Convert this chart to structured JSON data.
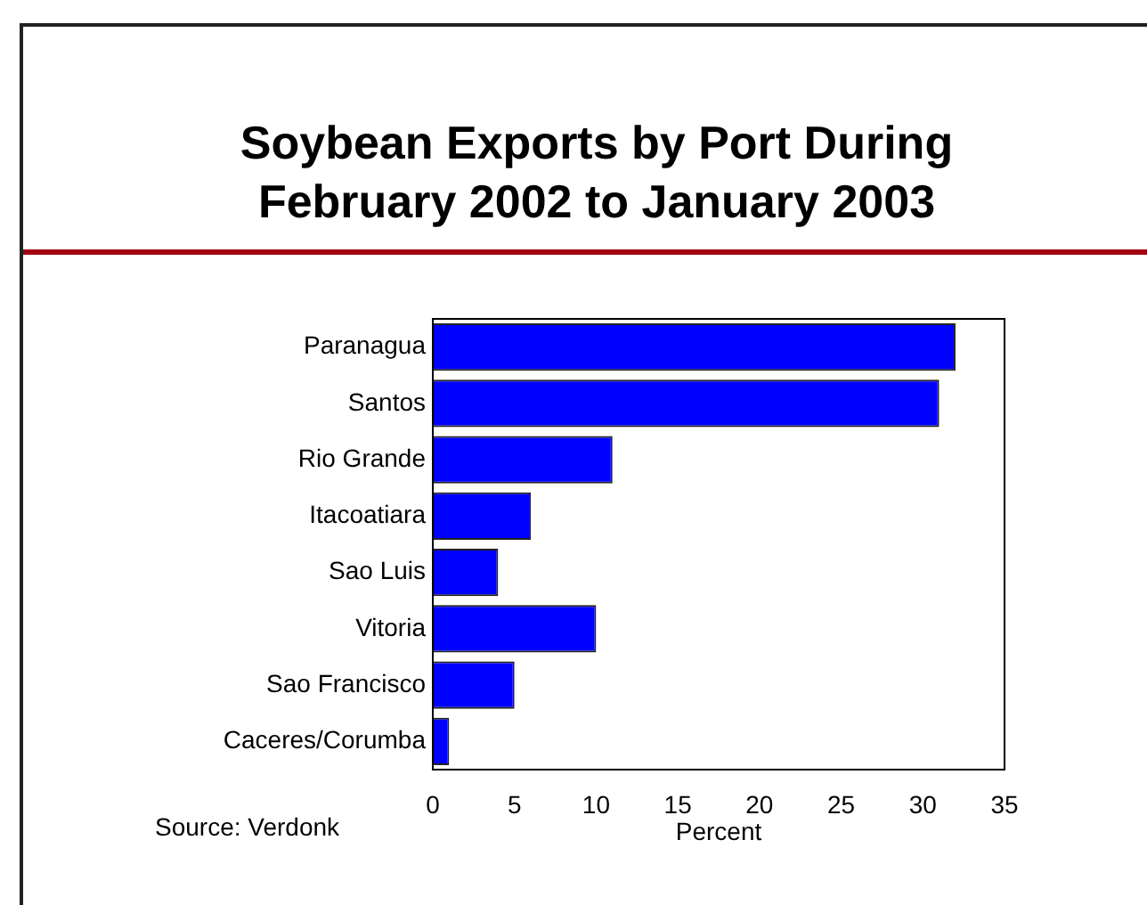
{
  "chart_data": {
    "type": "bar",
    "orientation": "horizontal",
    "title": "Soybean Exports by Port During\nFebruary 2002 to January 2003",
    "xlabel": "Percent",
    "categories": [
      "Paranagua",
      "Santos",
      "Rio Grande",
      "Itacoatiara",
      "Sao Luis",
      "Vitoria",
      "Sao Francisco",
      "Caceres/Corumba"
    ],
    "values": [
      32,
      31,
      11,
      6,
      4,
      10,
      5,
      1
    ],
    "color": "#0000ff",
    "xlim": [
      0,
      35
    ],
    "xticks": [
      0,
      5,
      10,
      15,
      20,
      25,
      30,
      35
    ],
    "grid": false,
    "legend": false,
    "annotations": [
      "Source: Verdonk"
    ]
  }
}
